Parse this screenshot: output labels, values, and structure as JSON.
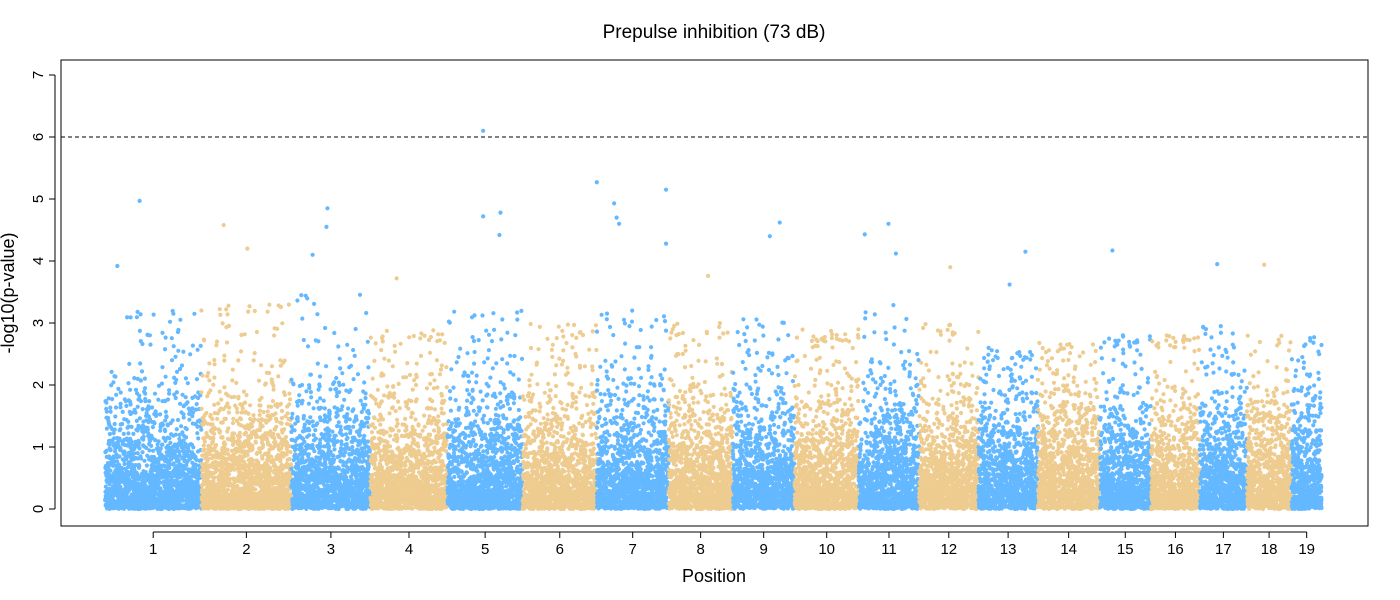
{
  "chart_data": {
    "type": "scatter",
    "title": "Prepulse inhibition (73 dB)",
    "xlabel": "Position",
    "ylabel": "-log10(p-value)",
    "ylim": [
      0,
      7
    ],
    "yticks": [
      0,
      1,
      2,
      3,
      4,
      5,
      6,
      7
    ],
    "threshold": 6,
    "grid": false,
    "colors": {
      "odd": "#63b8ff",
      "even": "#eecb8f",
      "threshold_line": "#000000"
    },
    "chromosomes": [
      {
        "label": "1",
        "start": 0,
        "end": 195,
        "max": 3.0
      },
      {
        "label": "2",
        "start": 195,
        "end": 377,
        "max": 3.1
      },
      {
        "label": "3",
        "start": 377,
        "end": 537,
        "max": 3.3
      },
      {
        "label": "4",
        "start": 537,
        "end": 693,
        "max": 2.7
      },
      {
        "label": "5",
        "start": 693,
        "end": 845,
        "max": 3.0
      },
      {
        "label": "6",
        "start": 845,
        "end": 995,
        "max": 2.8
      },
      {
        "label": "7",
        "start": 995,
        "end": 1140,
        "max": 3.0
      },
      {
        "label": "8",
        "start": 1140,
        "end": 1270,
        "max": 2.8
      },
      {
        "label": "9",
        "start": 1270,
        "end": 1395,
        "max": 2.9
      },
      {
        "label": "10",
        "start": 1395,
        "end": 1525,
        "max": 2.7
      },
      {
        "label": "11",
        "start": 1525,
        "end": 1647,
        "max": 3.1
      },
      {
        "label": "12",
        "start": 1647,
        "end": 1767,
        "max": 2.8
      },
      {
        "label": "13",
        "start": 1767,
        "end": 1887,
        "max": 2.4
      },
      {
        "label": "14",
        "start": 1887,
        "end": 2012,
        "max": 2.5
      },
      {
        "label": "15",
        "start": 2012,
        "end": 2116,
        "max": 2.6
      },
      {
        "label": "16",
        "start": 2116,
        "end": 2215,
        "max": 2.6
      },
      {
        "label": "17",
        "start": 2215,
        "end": 2310,
        "max": 2.8
      },
      {
        "label": "18",
        "start": 2310,
        "end": 2400,
        "max": 2.6
      },
      {
        "label": "19",
        "start": 2400,
        "end": 2462,
        "max": 2.6
      }
    ],
    "peaks": [
      {
        "x": 25,
        "y": 3.92
      },
      {
        "x": 70,
        "y": 4.97
      },
      {
        "x": 240,
        "y": 4.58
      },
      {
        "x": 288,
        "y": 4.2
      },
      {
        "x": 450,
        "y": 4.85
      },
      {
        "x": 448,
        "y": 4.55
      },
      {
        "x": 420,
        "y": 4.1
      },
      {
        "x": 590,
        "y": 3.72
      },
      {
        "x": 765,
        "y": 6.1
      },
      {
        "x": 765,
        "y": 4.72
      },
      {
        "x": 800,
        "y": 4.78
      },
      {
        "x": 798,
        "y": 4.42
      },
      {
        "x": 995,
        "y": 5.27
      },
      {
        "x": 1030,
        "y": 4.93
      },
      {
        "x": 1035,
        "y": 4.7
      },
      {
        "x": 1040,
        "y": 4.6
      },
      {
        "x": 1135,
        "y": 5.15
      },
      {
        "x": 1135,
        "y": 4.28
      },
      {
        "x": 1220,
        "y": 3.76
      },
      {
        "x": 1345,
        "y": 4.4
      },
      {
        "x": 1365,
        "y": 4.62
      },
      {
        "x": 1537,
        "y": 4.43
      },
      {
        "x": 1585,
        "y": 4.6
      },
      {
        "x": 1600,
        "y": 4.12
      },
      {
        "x": 1710,
        "y": 3.9
      },
      {
        "x": 1830,
        "y": 3.62
      },
      {
        "x": 1862,
        "y": 4.15
      },
      {
        "x": 2038,
        "y": 4.17
      },
      {
        "x": 2250,
        "y": 3.95
      },
      {
        "x": 2345,
        "y": 3.94
      }
    ]
  }
}
